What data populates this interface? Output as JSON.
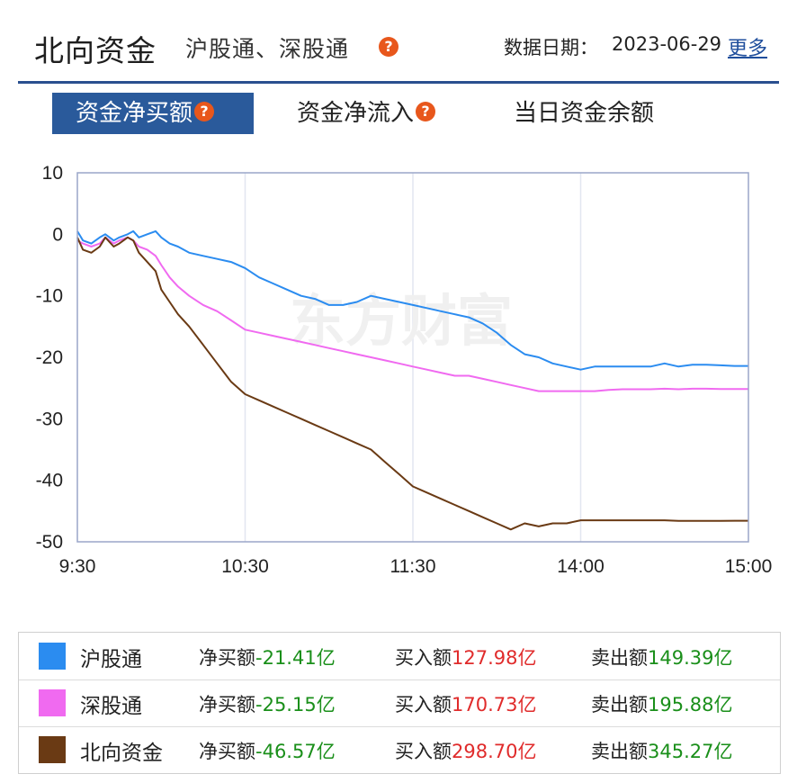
{
  "header": {
    "title": "北向资金",
    "subtitle": "沪股通、深股通",
    "date_label": "数据日期：",
    "date_value": "2023-06-29",
    "more_label": "更多",
    "help_glyph": "?"
  },
  "tabs": [
    {
      "label": "资金净买额",
      "active": true,
      "help": true
    },
    {
      "label": "资金净流入",
      "active": false,
      "help": true
    },
    {
      "label": "当日资金余额",
      "active": false,
      "help": false
    }
  ],
  "watermark": "东方财富",
  "colors": {
    "accent": "#2a5a9b",
    "help_icon": "#e8571c",
    "hgt": "#2b8cf0",
    "sgt": "#f06af0",
    "north": "#6a3a14",
    "positive": "#e02b2b",
    "negative": "#1a8f1a"
  },
  "chart_data": {
    "type": "line",
    "title": "",
    "xlabel": "",
    "ylabel": "",
    "x_ticks": [
      "9:30",
      "10:30",
      "11:30",
      "14:00",
      "15:00"
    ],
    "y_ticks": [
      10,
      0,
      -10,
      -20,
      -30,
      -40,
      -50
    ],
    "ylim": [
      -50,
      10
    ],
    "x_unit": "trading minutes since 9:30",
    "xlim": [
      0,
      240
    ],
    "grid": "vertical",
    "series": [
      {
        "name": "沪股通",
        "points": [
          [
            0,
            0.5
          ],
          [
            2,
            -1
          ],
          [
            5,
            -1.5
          ],
          [
            8,
            -0.5
          ],
          [
            10,
            0
          ],
          [
            13,
            -1
          ],
          [
            15,
            -0.5
          ],
          [
            18,
            0
          ],
          [
            20,
            0.5
          ],
          [
            22,
            -0.5
          ],
          [
            25,
            0
          ],
          [
            28,
            0.5
          ],
          [
            30,
            -0.5
          ],
          [
            33,
            -1.5
          ],
          [
            36,
            -2
          ],
          [
            40,
            -3
          ],
          [
            45,
            -3.5
          ],
          [
            50,
            -4
          ],
          [
            55,
            -4.5
          ],
          [
            60,
            -5.5
          ],
          [
            65,
            -7
          ],
          [
            70,
            -8
          ],
          [
            75,
            -9
          ],
          [
            80,
            -10
          ],
          [
            85,
            -10.5
          ],
          [
            90,
            -11.5
          ],
          [
            95,
            -11.5
          ],
          [
            100,
            -11
          ],
          [
            105,
            -10
          ],
          [
            110,
            -10.5
          ],
          [
            115,
            -11
          ],
          [
            120,
            -11.5
          ],
          [
            125,
            -12
          ],
          [
            130,
            -12.5
          ],
          [
            135,
            -13
          ],
          [
            140,
            -13.5
          ],
          [
            145,
            -14.5
          ],
          [
            150,
            -16
          ],
          [
            155,
            -18
          ],
          [
            160,
            -19.5
          ],
          [
            165,
            -20
          ],
          [
            170,
            -21
          ],
          [
            175,
            -21.5
          ],
          [
            180,
            -22
          ],
          [
            185,
            -21.5
          ],
          [
            190,
            -21.5
          ],
          [
            195,
            -21.5
          ],
          [
            200,
            -21.5
          ],
          [
            205,
            -21.5
          ],
          [
            210,
            -21
          ],
          [
            215,
            -21.5
          ],
          [
            220,
            -21.2
          ],
          [
            225,
            -21.2
          ],
          [
            230,
            -21.3
          ],
          [
            235,
            -21.4
          ],
          [
            240,
            -21.41
          ]
        ]
      },
      {
        "name": "深股通",
        "points": [
          [
            0,
            -1
          ],
          [
            2,
            -1.5
          ],
          [
            5,
            -2
          ],
          [
            8,
            -1.5
          ],
          [
            10,
            -0.5
          ],
          [
            13,
            -1.5
          ],
          [
            15,
            -1
          ],
          [
            18,
            -0.5
          ],
          [
            20,
            -1
          ],
          [
            22,
            -2
          ],
          [
            25,
            -2.5
          ],
          [
            28,
            -3.5
          ],
          [
            30,
            -5
          ],
          [
            33,
            -7
          ],
          [
            36,
            -8.5
          ],
          [
            40,
            -10
          ],
          [
            45,
            -11.5
          ],
          [
            50,
            -12.5
          ],
          [
            55,
            -14
          ],
          [
            60,
            -15.5
          ],
          [
            65,
            -16
          ],
          [
            70,
            -16.5
          ],
          [
            75,
            -17
          ],
          [
            80,
            -17.5
          ],
          [
            85,
            -18
          ],
          [
            90,
            -18.5
          ],
          [
            95,
            -19
          ],
          [
            100,
            -19.5
          ],
          [
            105,
            -20
          ],
          [
            110,
            -20.5
          ],
          [
            115,
            -21
          ],
          [
            120,
            -21.5
          ],
          [
            125,
            -22
          ],
          [
            130,
            -22.5
          ],
          [
            135,
            -23
          ],
          [
            140,
            -23
          ],
          [
            145,
            -23.5
          ],
          [
            150,
            -24
          ],
          [
            155,
            -24.5
          ],
          [
            160,
            -25
          ],
          [
            165,
            -25.5
          ],
          [
            170,
            -25.5
          ],
          [
            175,
            -25.5
          ],
          [
            180,
            -25.5
          ],
          [
            185,
            -25.5
          ],
          [
            190,
            -25.3
          ],
          [
            195,
            -25.2
          ],
          [
            200,
            -25.2
          ],
          [
            205,
            -25.2
          ],
          [
            210,
            -25.1
          ],
          [
            215,
            -25.2
          ],
          [
            220,
            -25.1
          ],
          [
            225,
            -25.1
          ],
          [
            230,
            -25.15
          ],
          [
            235,
            -25.15
          ],
          [
            240,
            -25.15
          ]
        ]
      },
      {
        "name": "北向资金",
        "points": [
          [
            0,
            -0.5
          ],
          [
            2,
            -2.5
          ],
          [
            5,
            -3
          ],
          [
            8,
            -2
          ],
          [
            10,
            -0.5
          ],
          [
            13,
            -2
          ],
          [
            15,
            -1.5
          ],
          [
            18,
            -0.5
          ],
          [
            20,
            -1
          ],
          [
            22,
            -3
          ],
          [
            25,
            -4.5
          ],
          [
            28,
            -6
          ],
          [
            30,
            -9
          ],
          [
            33,
            -11
          ],
          [
            36,
            -13
          ],
          [
            40,
            -15
          ],
          [
            45,
            -18
          ],
          [
            50,
            -21
          ],
          [
            55,
            -24
          ],
          [
            60,
            -26
          ],
          [
            65,
            -27
          ],
          [
            70,
            -28
          ],
          [
            75,
            -29
          ],
          [
            80,
            -30
          ],
          [
            85,
            -31
          ],
          [
            90,
            -32
          ],
          [
            95,
            -33
          ],
          [
            100,
            -34
          ],
          [
            105,
            -35
          ],
          [
            110,
            -37
          ],
          [
            115,
            -39
          ],
          [
            120,
            -41
          ],
          [
            125,
            -42
          ],
          [
            130,
            -43
          ],
          [
            135,
            -44
          ],
          [
            140,
            -45
          ],
          [
            145,
            -46
          ],
          [
            150,
            -47
          ],
          [
            155,
            -48
          ],
          [
            160,
            -47
          ],
          [
            165,
            -47.5
          ],
          [
            170,
            -47
          ],
          [
            175,
            -47
          ],
          [
            180,
            -46.5
          ],
          [
            185,
            -46.5
          ],
          [
            190,
            -46.5
          ],
          [
            195,
            -46.5
          ],
          [
            200,
            -46.5
          ],
          [
            205,
            -46.5
          ],
          [
            210,
            -46.5
          ],
          [
            215,
            -46.6
          ],
          [
            220,
            -46.6
          ],
          [
            225,
            -46.6
          ],
          [
            230,
            -46.6
          ],
          [
            235,
            -46.57
          ],
          [
            240,
            -46.57
          ]
        ]
      }
    ]
  },
  "legend": [
    {
      "name": "沪股通",
      "net_label": "净买额",
      "net_value": "-21.41亿",
      "buy_label": "买入额",
      "buy_value": "127.98亿",
      "sell_label": "卖出额",
      "sell_value": "149.39亿",
      "color": "#2b8cf0"
    },
    {
      "name": "深股通",
      "net_label": "净买额",
      "net_value": "-25.15亿",
      "buy_label": "买入额",
      "buy_value": "170.73亿",
      "sell_label": "卖出额",
      "sell_value": "195.88亿",
      "color": "#f06af0"
    },
    {
      "name": "北向资金",
      "net_label": "净买额",
      "net_value": "-46.57亿",
      "buy_label": "买入额",
      "buy_value": "298.70亿",
      "sell_label": "卖出额",
      "sell_value": "345.27亿",
      "color": "#6a3a14"
    }
  ]
}
